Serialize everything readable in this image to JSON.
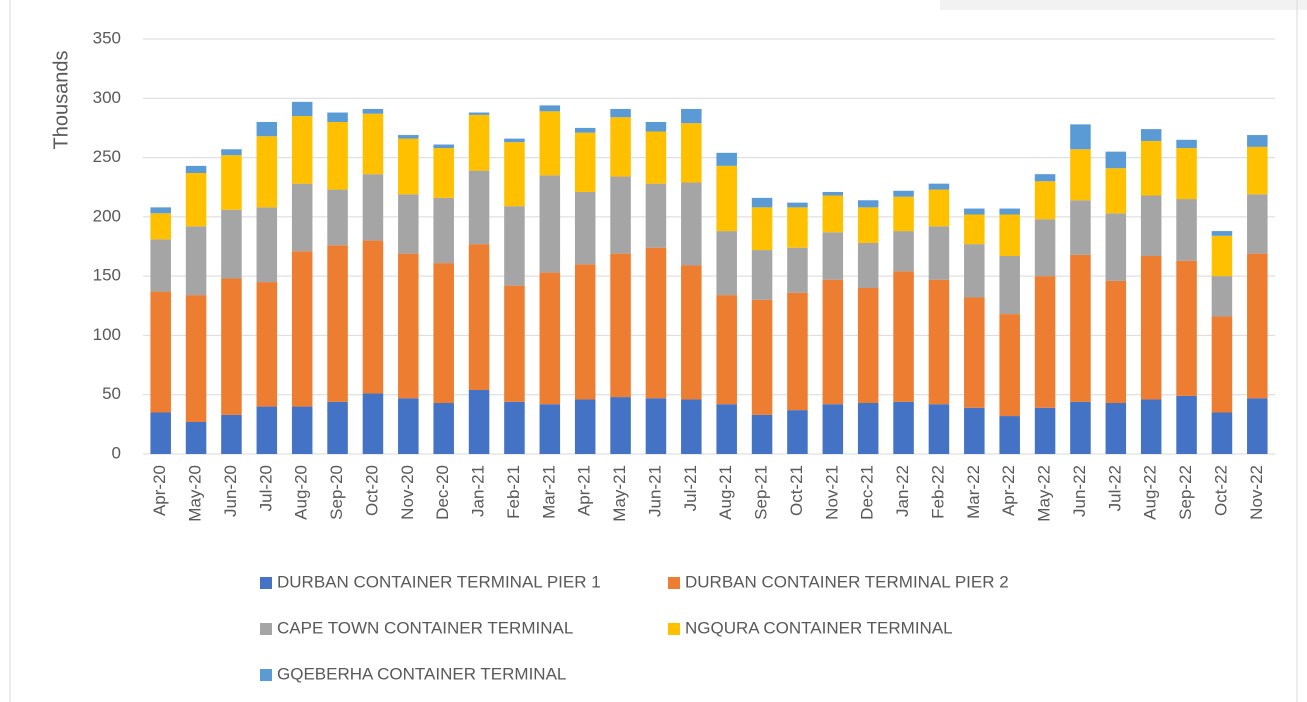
{
  "chart_data": {
    "type": "stacked-bar",
    "y_label": "Thousands",
    "categories": [
      "Apr-20",
      "May-20",
      "Jun-20",
      "Jul-20",
      "Aug-20",
      "Sep-20",
      "Oct-20",
      "Nov-20",
      "Dec-20",
      "Jan-21",
      "Feb-21",
      "Mar-21",
      "Apr-21",
      "May-21",
      "Jun-21",
      "Jul-21",
      "Aug-21",
      "Sep-21",
      "Oct-21",
      "Nov-21",
      "Dec-21",
      "Jan-22",
      "Feb-22",
      "Mar-22",
      "Apr-22",
      "May-22",
      "Jun-22",
      "Jul-22",
      "Aug-22",
      "Sep-22",
      "Oct-22",
      "Nov-22"
    ],
    "series": [
      {
        "name": "DURBAN CONTAINER TERMINAL PIER 1",
        "color": "#4472c4",
        "values": [
          35,
          27,
          33,
          40,
          40,
          44,
          51,
          47,
          43,
          54,
          44,
          42,
          46,
          48,
          47,
          46,
          42,
          33,
          37,
          42,
          43,
          44,
          42,
          39,
          32,
          39,
          44,
          43,
          46,
          49,
          35,
          47
        ]
      },
      {
        "name": "DURBAN CONTAINER TERMINAL PIER 2",
        "color": "#ed7d31",
        "values": [
          102,
          107,
          115,
          105,
          131,
          132,
          129,
          122,
          118,
          123,
          98,
          111,
          114,
          121,
          127,
          113,
          92,
          97,
          99,
          105,
          97,
          110,
          105,
          93,
          86,
          111,
          124,
          103,
          121,
          114,
          81,
          122
        ]
      },
      {
        "name": "CAPE TOWN CONTAINER TERMINAL",
        "color": "#a5a5a5",
        "values": [
          44,
          58,
          58,
          63,
          57,
          47,
          56,
          50,
          55,
          62,
          67,
          82,
          61,
          65,
          54,
          70,
          54,
          42,
          38,
          40,
          38,
          34,
          45,
          45,
          49,
          48,
          46,
          57,
          51,
          52,
          34,
          50
        ]
      },
      {
        "name": "NGQURA CONTAINER TERMINAL",
        "color": "#ffc000",
        "values": [
          22,
          45,
          46,
          60,
          57,
          57,
          51,
          47,
          42,
          47,
          54,
          54,
          50,
          50,
          44,
          50,
          55,
          36,
          34,
          31,
          30,
          29,
          31,
          25,
          35,
          32,
          43,
          38,
          46,
          43,
          34,
          40
        ]
      },
      {
        "name": "GQEBERHA CONTAINER TERMINAL",
        "color": "#5b9bd5",
        "values": [
          5,
          6,
          5,
          12,
          12,
          8,
          4,
          3,
          3,
          2,
          3,
          5,
          4,
          7,
          8,
          12,
          11,
          8,
          4,
          3,
          6,
          5,
          5,
          5,
          5,
          6,
          21,
          14,
          10,
          7,
          4,
          10
        ]
      }
    ],
    "ylim": [
      0,
      350
    ],
    "yticks": [
      0,
      50,
      100,
      150,
      200,
      250,
      300,
      350
    ],
    "grid": true
  }
}
